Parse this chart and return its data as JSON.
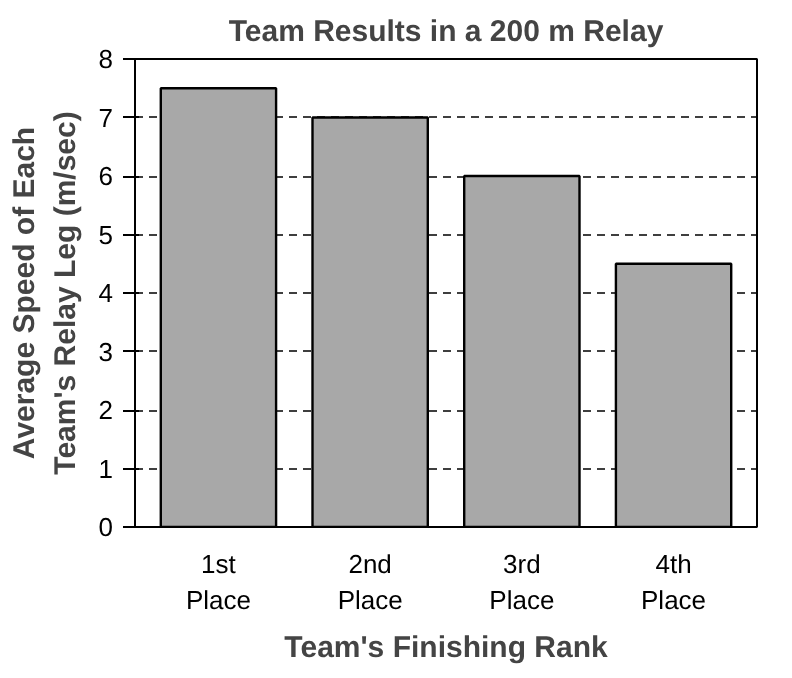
{
  "chart_data": {
    "type": "bar",
    "title": "Team Results in a 200 m Relay",
    "categories": [
      "1st\nPlace",
      "2nd\nPlace",
      "3rd\nPlace",
      "4th\nPlace"
    ],
    "values": [
      7.5,
      7,
      6,
      4.5
    ],
    "color": "#a8a8a8",
    "xlabel": "Team's Finishing Rank",
    "ylabel": "Average Speed of Each\nTeam's Relay Leg (m/sec)",
    "ylim": [
      0,
      8
    ],
    "yticks": [
      0,
      1,
      2,
      3,
      4,
      5,
      6,
      7,
      8
    ],
    "grid": "y"
  }
}
